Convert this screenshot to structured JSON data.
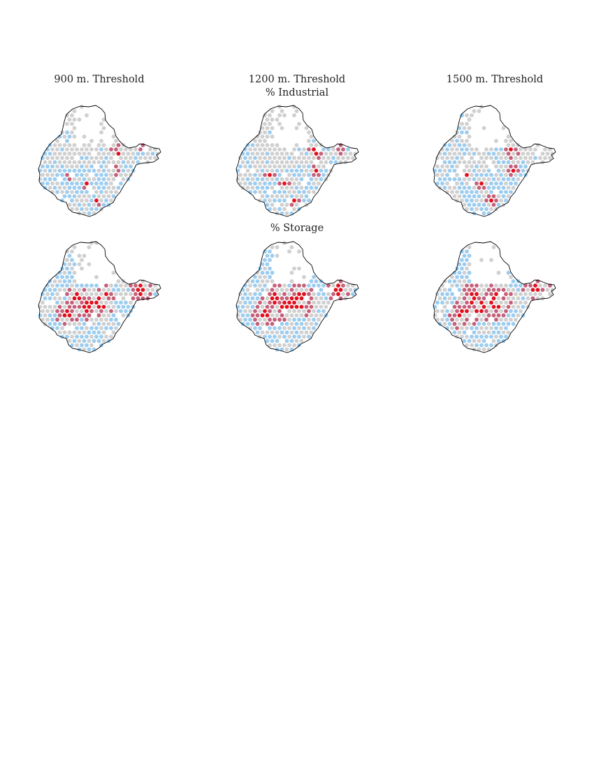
{
  "columns": [
    "900 m. Threshold",
    "1200 m. Threshold",
    "1500 m. Threshold"
  ],
  "rows": [
    "% Industrial",
    "% Storage"
  ],
  "colors": {
    "none": "#ffffff",
    "low": "#d0d0d0",
    "mid": "#9ccdf0",
    "high": "#c4607a",
    "max": "#e0101e",
    "border": "#000000"
  },
  "maps": [
    {
      "row": 0,
      "col": 0
    },
    {
      "row": 0,
      "col": 1
    },
    {
      "row": 0,
      "col": 2
    },
    {
      "row": 1,
      "col": 0
    },
    {
      "row": 1,
      "col": 1
    },
    {
      "row": 1,
      "col": 2
    }
  ]
}
